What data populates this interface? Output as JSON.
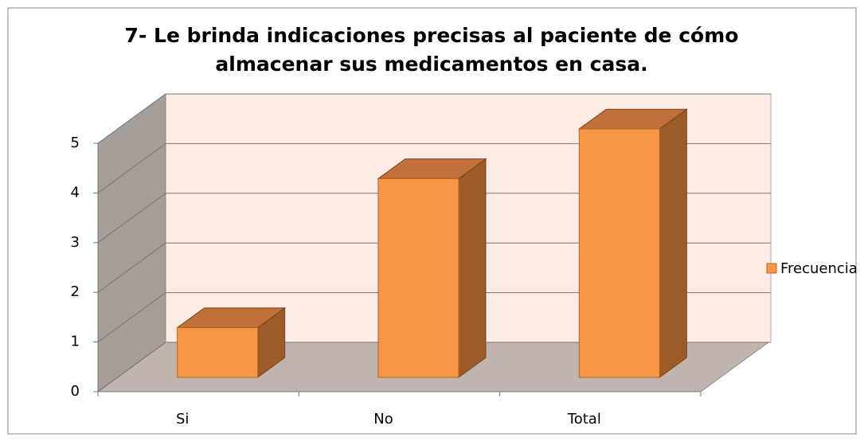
{
  "chart_data": {
    "type": "bar3d",
    "title_lines": [
      "7- Le  brinda indicaciones precisas al paciente de cómo",
      "almacenar sus medicamentos en casa."
    ],
    "categories": [
      "Si",
      "No",
      "Total"
    ],
    "series": [
      {
        "name": "Frecuencia",
        "color": "#f79646",
        "values": [
          1,
          4,
          5
        ]
      }
    ],
    "ylim": [
      0,
      5
    ],
    "yticks": [
      0,
      1,
      2,
      3,
      4,
      5
    ],
    "grid": true,
    "legend": "right"
  }
}
